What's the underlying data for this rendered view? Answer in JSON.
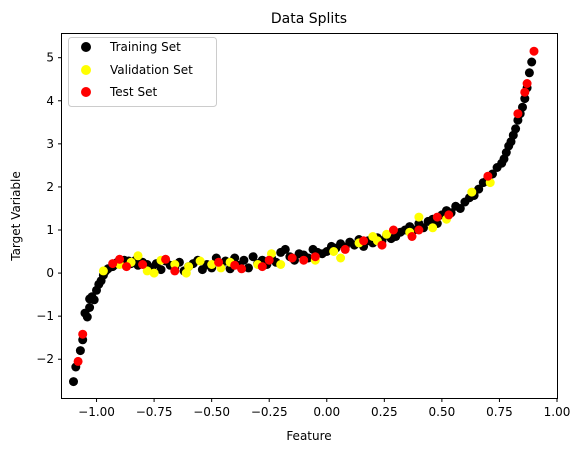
{
  "chart_data": {
    "type": "scatter",
    "title": "Data Splits",
    "xlabel": "Feature",
    "ylabel": "Target Variable",
    "xlim": [
      -1.15,
      1.0
    ],
    "ylim": [
      -2.9,
      5.55
    ],
    "xticks": [
      -1.0,
      -0.75,
      -0.5,
      -0.25,
      0.0,
      0.25,
      0.5,
      0.75,
      1.0
    ],
    "xtick_labels": [
      "−1.00",
      "−0.75",
      "−0.50",
      "−0.25",
      "0.00",
      "0.25",
      "0.50",
      "0.75",
      "1.00"
    ],
    "yticks": [
      -2,
      -1,
      0,
      1,
      2,
      3,
      4,
      5
    ],
    "ytick_labels": [
      "−2",
      "−1",
      "0",
      "1",
      "2",
      "3",
      "4",
      "5"
    ],
    "grid": false,
    "legend_position": "top-left",
    "series": [
      {
        "name": "Training Set",
        "color": "#000000",
        "points": [
          [
            -1.1,
            -2.52
          ],
          [
            -1.09,
            -2.18
          ],
          [
            -1.07,
            -1.8
          ],
          [
            -1.06,
            -1.55
          ],
          [
            -1.05,
            -0.93
          ],
          [
            -1.04,
            -1.02
          ],
          [
            -1.03,
            -0.8
          ],
          [
            -1.03,
            -0.6
          ],
          [
            -1.02,
            -0.55
          ],
          [
            -1.01,
            -0.62
          ],
          [
            -1.0,
            -0.4
          ],
          [
            -0.99,
            -0.26
          ],
          [
            -0.98,
            -0.18
          ],
          [
            -0.97,
            -0.05
          ],
          [
            -0.96,
            0.05
          ],
          [
            -0.95,
            0.1
          ],
          [
            -0.93,
            0.15
          ],
          [
            -0.92,
            0.2
          ],
          [
            -0.91,
            0.25
          ],
          [
            -0.89,
            0.22
          ],
          [
            -0.88,
            0.3
          ],
          [
            -0.86,
            0.28
          ],
          [
            -0.85,
            0.22
          ],
          [
            -0.83,
            0.3
          ],
          [
            -0.82,
            0.18
          ],
          [
            -0.8,
            0.25
          ],
          [
            -0.78,
            0.2
          ],
          [
            -0.76,
            0.12
          ],
          [
            -0.74,
            0.22
          ],
          [
            -0.72,
            0.08
          ],
          [
            -0.7,
            0.28
          ],
          [
            -0.68,
            0.18
          ],
          [
            -0.66,
            0.12
          ],
          [
            -0.64,
            0.25
          ],
          [
            -0.62,
            0.05
          ],
          [
            -0.6,
            0.15
          ],
          [
            -0.58,
            0.22
          ],
          [
            -0.56,
            0.3
          ],
          [
            -0.54,
            0.08
          ],
          [
            -0.52,
            0.2
          ],
          [
            -0.5,
            0.12
          ],
          [
            -0.48,
            0.35
          ],
          [
            -0.46,
            0.15
          ],
          [
            -0.44,
            0.28
          ],
          [
            -0.42,
            0.1
          ],
          [
            -0.4,
            0.35
          ],
          [
            -0.38,
            0.18
          ],
          [
            -0.36,
            0.3
          ],
          [
            -0.34,
            0.12
          ],
          [
            -0.32,
            0.38
          ],
          [
            -0.3,
            0.22
          ],
          [
            -0.28,
            0.3
          ],
          [
            -0.26,
            0.2
          ],
          [
            -0.24,
            0.35
          ],
          [
            -0.22,
            0.25
          ],
          [
            -0.2,
            0.48
          ],
          [
            -0.18,
            0.55
          ],
          [
            -0.16,
            0.38
          ],
          [
            -0.14,
            0.3
          ],
          [
            -0.12,
            0.45
          ],
          [
            -0.1,
            0.42
          ],
          [
            -0.08,
            0.35
          ],
          [
            -0.06,
            0.55
          ],
          [
            -0.04,
            0.48
          ],
          [
            -0.02,
            0.45
          ],
          [
            0.0,
            0.5
          ],
          [
            0.02,
            0.62
          ],
          [
            0.04,
            0.58
          ],
          [
            0.06,
            0.68
          ],
          [
            0.08,
            0.6
          ],
          [
            0.1,
            0.72
          ],
          [
            0.12,
            0.65
          ],
          [
            0.14,
            0.78
          ],
          [
            0.16,
            0.62
          ],
          [
            0.18,
            0.75
          ],
          [
            0.2,
            0.7
          ],
          [
            0.22,
            0.82
          ],
          [
            0.24,
            0.75
          ],
          [
            0.26,
            0.88
          ],
          [
            0.28,
            0.8
          ],
          [
            0.3,
            0.85
          ],
          [
            0.32,
            0.95
          ],
          [
            0.34,
            1.0
          ],
          [
            0.36,
            1.08
          ],
          [
            0.38,
            1.0
          ],
          [
            0.4,
            1.15
          ],
          [
            0.42,
            1.05
          ],
          [
            0.44,
            1.2
          ],
          [
            0.46,
            1.25
          ],
          [
            0.48,
            1.15
          ],
          [
            0.5,
            1.35
          ],
          [
            0.52,
            1.45
          ],
          [
            0.54,
            1.4
          ],
          [
            0.56,
            1.55
          ],
          [
            0.58,
            1.5
          ],
          [
            0.6,
            1.65
          ],
          [
            0.62,
            1.75
          ],
          [
            0.64,
            1.8
          ],
          [
            0.66,
            1.95
          ],
          [
            0.68,
            2.1
          ],
          [
            0.7,
            2.2
          ],
          [
            0.72,
            2.3
          ],
          [
            0.74,
            2.45
          ],
          [
            0.76,
            2.55
          ],
          [
            0.77,
            2.65
          ],
          [
            0.78,
            2.8
          ],
          [
            0.79,
            2.95
          ],
          [
            0.8,
            3.05
          ],
          [
            0.81,
            3.2
          ],
          [
            0.82,
            3.35
          ],
          [
            0.83,
            3.55
          ],
          [
            0.84,
            3.7
          ],
          [
            0.85,
            3.85
          ],
          [
            0.86,
            4.05
          ],
          [
            0.87,
            4.3
          ],
          [
            0.88,
            4.65
          ],
          [
            0.89,
            4.9
          ]
        ]
      },
      {
        "name": "Validation Set",
        "color": "#ffff00",
        "points": [
          [
            -0.97,
            0.05
          ],
          [
            -0.9,
            0.2
          ],
          [
            -0.85,
            0.25
          ],
          [
            -0.82,
            0.4
          ],
          [
            -0.78,
            0.05
          ],
          [
            -0.75,
            0.0
          ],
          [
            -0.72,
            0.3
          ],
          [
            -0.66,
            0.2
          ],
          [
            -0.61,
            0.0
          ],
          [
            -0.6,
            0.15
          ],
          [
            -0.55,
            0.28
          ],
          [
            -0.5,
            0.2
          ],
          [
            -0.46,
            0.12
          ],
          [
            -0.42,
            0.25
          ],
          [
            -0.3,
            0.2
          ],
          [
            -0.24,
            0.45
          ],
          [
            -0.2,
            0.2
          ],
          [
            -0.05,
            0.3
          ],
          [
            0.03,
            0.5
          ],
          [
            0.06,
            0.35
          ],
          [
            0.14,
            0.7
          ],
          [
            0.2,
            0.85
          ],
          [
            0.22,
            0.75
          ],
          [
            0.26,
            0.9
          ],
          [
            0.36,
            0.95
          ],
          [
            0.4,
            1.3
          ],
          [
            0.46,
            1.05
          ],
          [
            0.52,
            1.25
          ],
          [
            0.63,
            1.88
          ],
          [
            0.71,
            2.1
          ]
        ]
      },
      {
        "name": "Test Set",
        "color": "#ff0000",
        "points": [
          [
            -1.08,
            -2.05
          ],
          [
            -1.06,
            -1.42
          ],
          [
            -0.93,
            0.22
          ],
          [
            -0.9,
            0.32
          ],
          [
            -0.87,
            0.15
          ],
          [
            -0.8,
            0.2
          ],
          [
            -0.7,
            0.32
          ],
          [
            -0.66,
            0.05
          ],
          [
            -0.47,
            0.25
          ],
          [
            -0.4,
            0.18
          ],
          [
            -0.37,
            0.1
          ],
          [
            -0.28,
            0.15
          ],
          [
            -0.25,
            0.3
          ],
          [
            -0.15,
            0.35
          ],
          [
            -0.1,
            0.3
          ],
          [
            -0.05,
            0.38
          ],
          [
            0.08,
            0.55
          ],
          [
            0.16,
            0.75
          ],
          [
            0.24,
            0.65
          ],
          [
            0.29,
            1.0
          ],
          [
            0.37,
            0.85
          ],
          [
            0.4,
            1.0
          ],
          [
            0.48,
            1.3
          ],
          [
            0.53,
            1.35
          ],
          [
            0.7,
            2.25
          ],
          [
            0.83,
            3.7
          ],
          [
            0.86,
            4.2
          ],
          [
            0.87,
            4.4
          ],
          [
            0.9,
            5.15
          ]
        ]
      }
    ]
  }
}
